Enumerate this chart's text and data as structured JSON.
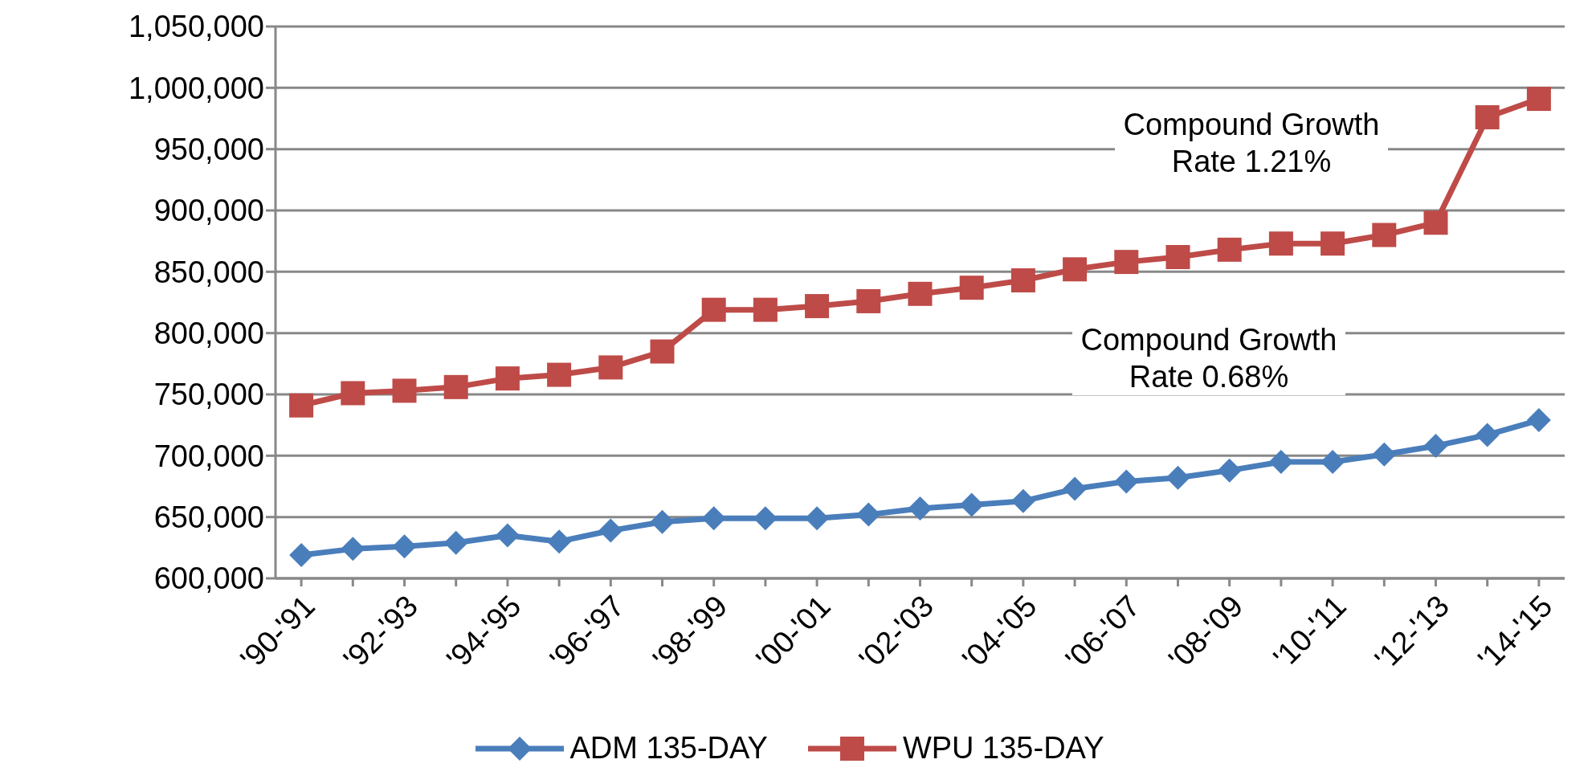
{
  "chart_data": {
    "type": "line",
    "categories": [
      "'90-'91",
      null,
      "'92-'93",
      null,
      "'94-'95",
      null,
      "'96-'97",
      null,
      "'98-'99",
      null,
      "'00-'01",
      null,
      "'02-'03",
      null,
      "'04-'05",
      null,
      "'06-'07",
      null,
      "'08-'09",
      null,
      "'10-'11",
      null,
      "'12-'13",
      null,
      "'14-'15"
    ],
    "series": [
      {
        "name": "ADM 135-DAY",
        "color": "#4a7ebb",
        "marker": "diamond",
        "values": [
          619000,
          624000,
          626000,
          629000,
          635000,
          630000,
          639000,
          646000,
          649000,
          649000,
          649000,
          652000,
          657000,
          660000,
          663000,
          673000,
          679000,
          682000,
          688000,
          695000,
          695000,
          701000,
          708000,
          717000,
          729000
        ]
      },
      {
        "name": "WPU 135-DAY",
        "color": "#be4b48",
        "marker": "square",
        "values": [
          741000,
          751000,
          753000,
          756000,
          763000,
          766000,
          772000,
          785000,
          819000,
          819000,
          822000,
          826000,
          832000,
          837000,
          843000,
          852000,
          858000,
          862000,
          868000,
          873000,
          873000,
          880000,
          890000,
          976000,
          991000
        ]
      }
    ],
    "ylim": [
      600000,
      1050000
    ],
    "yticks": [
      {
        "value": 600000,
        "label": "600,000"
      },
      {
        "value": 650000,
        "label": "650,000"
      },
      {
        "value": 700000,
        "label": "700,000"
      },
      {
        "value": 750000,
        "label": "750,000"
      },
      {
        "value": 800000,
        "label": "800,000"
      },
      {
        "value": 850000,
        "label": "850,000"
      },
      {
        "value": 900000,
        "label": "900,000"
      },
      {
        "value": 950000,
        "label": "950,000"
      },
      {
        "value": 1000000,
        "label": "1,000,000"
      },
      {
        "value": 1050000,
        "label": "1,050,000"
      }
    ],
    "grid": "y",
    "legend": "bottom",
    "line_style": "solid",
    "annotations": [
      "Compound Growth Rate 1.21%",
      "Compound Growth Rate 0.68%"
    ]
  }
}
